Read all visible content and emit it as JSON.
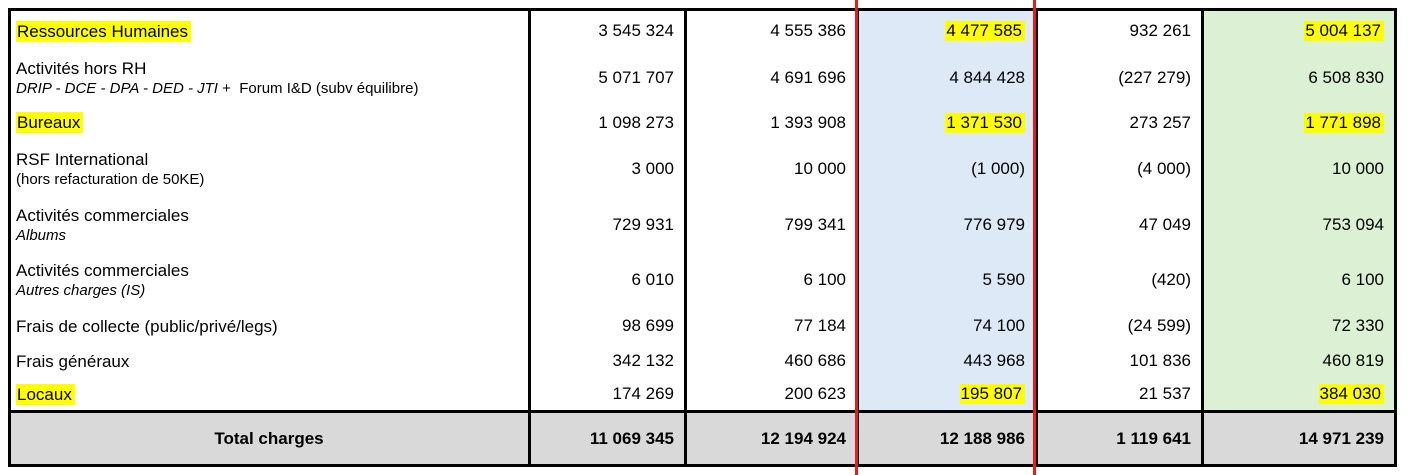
{
  "colors": {
    "highlight": "#ffff00",
    "blue_column": "#dde9f7",
    "green_column": "#dcf0d4",
    "total_band": "#d9d9d9",
    "red_marker": "#e02020"
  },
  "rows": [
    {
      "label": "Ressources Humaines",
      "values": [
        "3 545 324",
        "4 555 386",
        "4 477 585",
        "932 261",
        "5 004 137"
      ]
    },
    {
      "label": "Activités hors RH",
      "sub_italic": "DRIP - DCE - DPA - DED - JTI",
      "sub_plain": " +  Forum I&D (subv équilibre)",
      "values": [
        "5 071 707",
        "4 691 696",
        "4 844 428",
        "(227 279)",
        "6 508 830"
      ]
    },
    {
      "label": "Bureaux",
      "values": [
        "1 098 273",
        "1 393 908",
        "1 371 530",
        "273 257",
        "1 771 898"
      ]
    },
    {
      "label": "RSF International",
      "sub_plain": "(hors refacturation de 50KE)",
      "values": [
        "3 000",
        "10 000",
        "(1 000)",
        "(4 000)",
        "10 000"
      ]
    },
    {
      "label": "Activités commerciales",
      "sub_italic": "Albums",
      "values": [
        "729 931",
        "799 341",
        "776 979",
        "47 049",
        "753 094"
      ]
    },
    {
      "label": "Activités commerciales",
      "sub_italic": "Autres charges (IS)",
      "values": [
        "6 010",
        "6 100",
        "5 590",
        "(420)",
        "6 100"
      ]
    },
    {
      "label": "Frais de collecte (public/privé/legs)",
      "values": [
        "98 699",
        "77 184",
        "74 100",
        "(24 599)",
        "72 330"
      ]
    },
    {
      "label": "Frais généraux",
      "values": [
        "342 132",
        "460 686",
        "443 968",
        "101 836",
        "460 819"
      ]
    },
    {
      "label": "Locaux",
      "values": [
        "174 269",
        "200 623",
        "195 807",
        "21 537",
        "384 030"
      ]
    }
  ],
  "total": {
    "label": "Total charges",
    "values": [
      "11 069 345",
      "12 194 924",
      "12 188 986",
      "1 119 641",
      "14 971 239"
    ]
  }
}
